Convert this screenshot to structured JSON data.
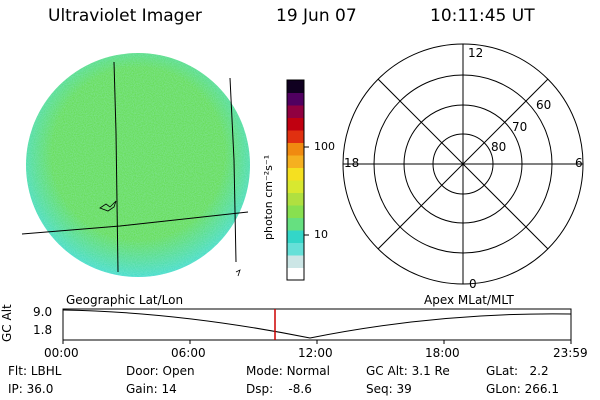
{
  "header": {
    "instrument": "Ultraviolet Imager",
    "date": "19 Jun 07",
    "time": "10:11:45 UT"
  },
  "colorbar": {
    "unit_label": "photon cm⁻²s⁻¹",
    "ticks": [
      "100",
      "10"
    ],
    "colors": [
      "#ffffff",
      "#cce6e6",
      "#66e0d8",
      "#33d6c8",
      "#66e080",
      "#88e050",
      "#b0e040",
      "#d8e830",
      "#f5e020",
      "#f5b020",
      "#f08a10",
      "#e03010",
      "#c00010",
      "#900040",
      "#500060",
      "#100020"
    ]
  },
  "earth_disk": {
    "fill_main": "#66dd55",
    "fill_edge": "#44ddcc"
  },
  "polar_plot": {
    "mlt_labels": {
      "top": "12",
      "left": "18",
      "right": "6",
      "bottom": "0"
    },
    "lat_labels": [
      "60",
      "70",
      "80"
    ]
  },
  "timeline": {
    "left_title": "Geographic Lat/Lon",
    "right_title": "Apex MLat/MLT",
    "y_axis_label": "GC Alt",
    "y_ticks": [
      "9.0",
      "1.8"
    ],
    "x_ticks": [
      "00:00",
      "06:00",
      "12:00",
      "18:00",
      "23:59"
    ],
    "marker_color": "#cc0000"
  },
  "status": {
    "row1": [
      {
        "label": "Flt:",
        "value": "LBHL"
      },
      {
        "label": "Door:",
        "value": "Open"
      },
      {
        "label": "Mode:",
        "value": "Normal"
      },
      {
        "label": "GC Alt:",
        "value": "3.1 Re"
      },
      {
        "label": "GLat:",
        "value": "2.2"
      }
    ],
    "row2": [
      {
        "label": "IP:",
        "value": "36.0"
      },
      {
        "label": "Gain:",
        "value": "14"
      },
      {
        "label": "Dsp:",
        "value": "-8.6"
      },
      {
        "label": "Seq:",
        "value": "39"
      },
      {
        "label": "GLon:",
        "value": "266.1"
      }
    ]
  }
}
